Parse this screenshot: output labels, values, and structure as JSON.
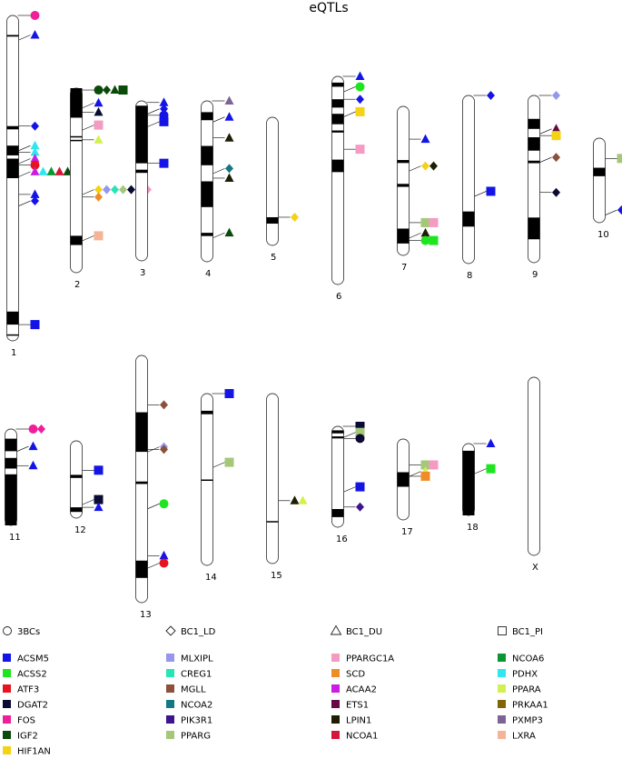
{
  "title": "eQTLs",
  "colors": {
    "ACSM5": "#1414e6",
    "ACSS2": "#1ee61e",
    "ATF3": "#e6141e",
    "DGAT2": "#0a0a32",
    "FOS": "#f01e9b",
    "IGF2": "#0a4b0a",
    "HIF1AN": "#f5d214",
    "MLXIPL": "#9696f0",
    "CREG1": "#28e6b4",
    "MGLL": "#8c503c",
    "NCOA2": "#147882",
    "PIK3R1": "#3c148c",
    "PPARG": "#a5c878",
    "PPARGC1A": "#f59bc3",
    "SCD": "#f08c28",
    "ACAA2": "#c81ee6",
    "ETS1": "#640a46",
    "LPIN1": "#1e1e05",
    "NCOA1": "#d7143c",
    "NCOA6": "#0a9632",
    "PDHX": "#32e6f0",
    "PPARA": "#d2f050",
    "PRKAA1": "#826405",
    "PXMP3": "#7d6496",
    "LXRA": "#f5b496"
  },
  "shape_legend": [
    {
      "shape": "circle",
      "label": "3BCs"
    },
    {
      "shape": "diamond",
      "label": "BC1_LD"
    },
    {
      "shape": "triangle",
      "label": "BC1_DU"
    },
    {
      "shape": "square",
      "label": "BC1_PI"
    }
  ],
  "gene_legend": [
    [
      "ACSM5",
      "ACSS2",
      "ATF3",
      "DGAT2",
      "FOS",
      "IGF2",
      "HIF1AN"
    ],
    [
      "MLXIPL",
      "CREG1",
      "MGLL",
      "NCOA2",
      "PIK3R1",
      "PPARG"
    ],
    [
      "PPARGC1A",
      "SCD",
      "ACAA2",
      "ETS1",
      "LPIN1",
      "NCOA1"
    ],
    [
      "NCOA6",
      "PDHX",
      "PPARA",
      "PRKAA1",
      "PXMP3",
      "LXRA"
    ]
  ],
  "chromosomes": [
    {
      "label": "1",
      "bands": [
        [
          0.06,
          0.005
        ],
        [
          0.34,
          0.01
        ],
        [
          0.4,
          0.03
        ],
        [
          0.44,
          0.06
        ],
        [
          0.91,
          0.04
        ],
        [
          0.98,
          0.004
        ]
      ],
      "markers": [
        {
          "pos": 0.0,
          "items": [
            [
              "circle",
              "FOS"
            ]
          ]
        },
        {
          "pos": 0.06,
          "items": [
            [
              "triangle",
              "ACSM5"
            ]
          ]
        },
        {
          "pos": 0.34,
          "items": [
            [
              "diamond",
              "ACSM5"
            ]
          ]
        },
        {
          "pos": 0.4,
          "items": [
            [
              "triangle",
              "PDHX"
            ]
          ]
        },
        {
          "pos": 0.42,
          "items": [
            [
              "triangle",
              "PDHX"
            ]
          ]
        },
        {
          "pos": 0.44,
          "items": [
            [
              "triangle",
              "ACAA2"
            ]
          ]
        },
        {
          "pos": 0.46,
          "items": [
            [
              "circle",
              "ATF3"
            ]
          ]
        },
        {
          "pos": 0.48,
          "items": [
            [
              "triangle",
              "ACAA2"
            ],
            [
              "triangle",
              "PDHX"
            ],
            [
              "triangle",
              "NCOA6"
            ],
            [
              "triangle",
              "NCOA1"
            ],
            [
              "triangle",
              "IGF2"
            ],
            [
              "triangle",
              "PRKAA1"
            ]
          ]
        },
        {
          "pos": 0.55,
          "items": [
            [
              "triangle",
              "ACSM5"
            ]
          ]
        },
        {
          "pos": 0.57,
          "items": [
            [
              "diamond",
              "ACSM5"
            ]
          ]
        },
        {
          "pos": 0.95,
          "items": [
            [
              "square",
              "ACSM5"
            ]
          ]
        }
      ]
    },
    {
      "label": "2",
      "bands": [
        [
          0.0,
          0.16
        ],
        [
          0.26,
          0.005
        ],
        [
          0.28,
          0.005
        ],
        [
          0.8,
          0.05
        ]
      ],
      "markers": [
        {
          "pos": 0.01,
          "items": [
            [
              "circle",
              "IGF2"
            ],
            [
              "diamond",
              "IGF2"
            ],
            [
              "triangle",
              "IGF2"
            ],
            [
              "square",
              "IGF2"
            ]
          ]
        },
        {
          "pos": 0.08,
          "items": [
            [
              "triangle",
              "ACSM5"
            ]
          ]
        },
        {
          "pos": 0.13,
          "items": [
            [
              "triangle",
              "DGAT2"
            ]
          ]
        },
        {
          "pos": 0.2,
          "items": [
            [
              "square",
              "PPARGC1A"
            ]
          ]
        },
        {
          "pos": 0.28,
          "items": [
            [
              "triangle",
              "PPARA"
            ]
          ]
        },
        {
          "pos": 0.55,
          "items": [
            [
              "diamond",
              "HIF1AN"
            ],
            [
              "diamond",
              "MLXIPL"
            ],
            [
              "diamond",
              "CREG1"
            ],
            [
              "diamond",
              "PPARG"
            ],
            [
              "diamond",
              "DGAT2"
            ],
            [
              "diamond",
              "MGLL"
            ],
            [
              "diamond",
              "PPARGC1A"
            ]
          ]
        },
        {
          "pos": 0.59,
          "items": [
            [
              "diamond",
              "SCD"
            ]
          ]
        },
        {
          "pos": 0.8,
          "items": [
            [
              "square",
              "LXRA"
            ]
          ]
        }
      ]
    },
    {
      "label": "3",
      "bands": [
        [
          0.03,
          0.36
        ],
        [
          0.43,
          0.02
        ]
      ],
      "markers": [
        {
          "pos": 0.01,
          "items": [
            [
              "triangle",
              "ACSM5"
            ]
          ]
        },
        {
          "pos": 0.05,
          "items": [
            [
              "diamond",
              "ACSM5"
            ]
          ]
        },
        {
          "pos": 0.09,
          "items": [
            [
              "circle",
              "ACSM5"
            ]
          ]
        },
        {
          "pos": 0.13,
          "items": [
            [
              "square",
              "ACSM5"
            ]
          ]
        },
        {
          "pos": 0.39,
          "items": [
            [
              "square",
              "ACSM5"
            ]
          ]
        }
      ]
    },
    {
      "label": "4",
      "bands": [
        [
          0.07,
          0.05
        ],
        [
          0.28,
          0.12
        ],
        [
          0.5,
          0.16
        ],
        [
          0.82,
          0.02
        ]
      ],
      "markers": [
        {
          "pos": 0.0,
          "items": [
            [
              "triangle",
              "PXMP3"
            ]
          ]
        },
        {
          "pos": 0.1,
          "items": [
            [
              "triangle",
              "ACSM5"
            ]
          ]
        },
        {
          "pos": 0.23,
          "items": [
            [
              "triangle",
              "LPIN1"
            ]
          ]
        },
        {
          "pos": 0.42,
          "items": [
            [
              "diamond",
              "NCOA2"
            ]
          ]
        },
        {
          "pos": 0.48,
          "items": [
            [
              "triangle",
              "LPIN1"
            ]
          ]
        },
        {
          "pos": 0.82,
          "items": [
            [
              "triangle",
              "IGF2"
            ]
          ]
        }
      ]
    },
    {
      "label": "5",
      "bands": [
        [
          0.78,
          0.05
        ]
      ],
      "markers": [
        {
          "pos": 0.78,
          "items": [
            [
              "diamond",
              "HIF1AN"
            ]
          ]
        }
      ]
    },
    {
      "label": "6",
      "bands": [
        [
          0.03,
          0.02
        ],
        [
          0.11,
          0.04
        ],
        [
          0.18,
          0.05
        ],
        [
          0.26,
          0.01
        ],
        [
          0.4,
          0.06
        ]
      ],
      "markers": [
        {
          "pos": 0.0,
          "items": [
            [
              "triangle",
              "ACSM5"
            ]
          ]
        },
        {
          "pos": 0.05,
          "items": [
            [
              "circle",
              "ACSS2"
            ]
          ]
        },
        {
          "pos": 0.11,
          "items": [
            [
              "diamond",
              "ACSM5"
            ]
          ]
        },
        {
          "pos": 0.17,
          "items": [
            [
              "square",
              "HIF1AN"
            ]
          ]
        },
        {
          "pos": 0.35,
          "items": [
            [
              "square",
              "PPARGC1A"
            ]
          ]
        }
      ]
    },
    {
      "label": "7",
      "bands": [
        [
          0.36,
          0.02
        ],
        [
          0.52,
          0.02
        ],
        [
          0.82,
          0.1
        ]
      ],
      "markers": [
        {
          "pos": 0.22,
          "items": [
            [
              "triangle",
              "ACSM5"
            ]
          ]
        },
        {
          "pos": 0.4,
          "items": [
            [
              "diamond",
              "HIF1AN"
            ],
            [
              "diamond",
              "LPIN1"
            ]
          ]
        },
        {
          "pos": 0.78,
          "items": [
            [
              "square",
              "PPARG"
            ],
            [
              "square",
              "PPARGC1A"
            ]
          ]
        },
        {
          "pos": 0.85,
          "items": [
            [
              "triangle",
              "LPIN1"
            ]
          ]
        },
        {
          "pos": 0.9,
          "items": [
            [
              "circle",
              "ACSS2"
            ],
            [
              "square",
              "ACSS2"
            ]
          ]
        }
      ]
    },
    {
      "label": "8",
      "bands": [
        [
          0.69,
          0.09
        ]
      ],
      "markers": [
        {
          "pos": 0.0,
          "items": [
            [
              "diamond",
              "ACSM5"
            ]
          ]
        },
        {
          "pos": 0.57,
          "items": [
            [
              "square",
              "ACSM5"
            ]
          ]
        }
      ]
    },
    {
      "label": "9",
      "bands": [
        [
          0.14,
          0.06
        ],
        [
          0.25,
          0.08
        ],
        [
          0.39,
          0.015
        ],
        [
          0.73,
          0.13
        ]
      ],
      "markers": [
        {
          "pos": 0.0,
          "items": [
            [
              "diamond",
              "MLXIPL"
            ]
          ]
        },
        {
          "pos": 0.2,
          "items": [
            [
              "triangle",
              "ETS1"
            ]
          ]
        },
        {
          "pos": 0.24,
          "items": [
            [
              "square",
              "HIF1AN"
            ]
          ]
        },
        {
          "pos": 0.37,
          "items": [
            [
              "diamond",
              "MGLL"
            ]
          ]
        },
        {
          "pos": 0.58,
          "items": [
            [
              "diamond",
              "DGAT2"
            ]
          ]
        }
      ]
    },
    {
      "label": "10",
      "bands": [
        [
          0.35,
          0.1
        ]
      ],
      "markers": [
        {
          "pos": 0.24,
          "items": [
            [
              "square",
              "PPARG"
            ]
          ]
        },
        {
          "pos": 0.85,
          "items": [
            [
              "diamond",
              "ACSM5"
            ]
          ]
        }
      ]
    },
    {
      "label": "11",
      "bands": [
        [
          0.1,
          0.13
        ],
        [
          0.3,
          0.11
        ],
        [
          0.47,
          0.53
        ]
      ],
      "markers": [
        {
          "pos": 0.0,
          "items": [
            [
              "circle",
              "FOS"
            ],
            [
              "diamond",
              "FOS"
            ]
          ]
        },
        {
          "pos": 0.18,
          "items": [
            [
              "triangle",
              "ACSM5"
            ]
          ]
        },
        {
          "pos": 0.38,
          "items": [
            [
              "triangle",
              "ACSM5"
            ]
          ]
        }
      ]
    },
    {
      "label": "12",
      "bands": [
        [
          0.44,
          0.04
        ],
        [
          0.86,
          0.06
        ]
      ],
      "markers": [
        {
          "pos": 0.38,
          "items": [
            [
              "square",
              "ACSM5"
            ]
          ]
        },
        {
          "pos": 0.76,
          "items": [
            [
              "square",
              "DGAT2"
            ]
          ]
        },
        {
          "pos": 0.86,
          "items": [
            [
              "triangle",
              "ACSM5"
            ]
          ]
        }
      ]
    },
    {
      "label": "13",
      "bands": [
        [
          0.23,
          0.16
        ],
        [
          0.51,
          0.01
        ],
        [
          0.83,
          0.07
        ]
      ],
      "markers": [
        {
          "pos": 0.2,
          "items": [
            [
              "diamond",
              "MGLL"
            ]
          ]
        },
        {
          "pos": 0.37,
          "items": [
            [
              "diamond",
              "MLXIPL"
            ]
          ]
        },
        {
          "pos": 0.38,
          "items": [
            [
              "diamond",
              "MGLL"
            ]
          ]
        },
        {
          "pos": 0.6,
          "items": [
            [
              "circle",
              "ACSS2"
            ]
          ]
        },
        {
          "pos": 0.81,
          "items": [
            [
              "triangle",
              "ACSM5"
            ]
          ]
        },
        {
          "pos": 0.84,
          "items": [
            [
              "circle",
              "ATF3"
            ]
          ]
        }
      ]
    },
    {
      "label": "14",
      "bands": [
        [
          0.1,
          0.02
        ],
        [
          0.5,
          0.003
        ]
      ],
      "markers": [
        {
          "pos": 0.0,
          "items": [
            [
              "square",
              "ACSM5"
            ]
          ]
        },
        {
          "pos": 0.4,
          "items": [
            [
              "square",
              "PPARG"
            ]
          ]
        }
      ]
    },
    {
      "label": "15",
      "bands": [
        [
          0.75,
          0.003
        ]
      ],
      "markers": [
        {
          "pos": 0.63,
          "items": [
            [
              "triangle",
              "LPIN1"
            ],
            [
              "triangle",
              "PPARA"
            ]
          ]
        }
      ]
    },
    {
      "label": "16",
      "bands": [
        [
          0.04,
          0.03
        ],
        [
          0.1,
          0.02
        ],
        [
          0.82,
          0.08
        ]
      ],
      "markers": [
        {
          "pos": 0.0,
          "items": [
            [
              "square",
              "DGAT2"
            ]
          ]
        },
        {
          "pos": 0.06,
          "items": [
            [
              "square",
              "PPARG"
            ]
          ]
        },
        {
          "pos": 0.12,
          "items": [
            [
              "circle",
              "DGAT2"
            ]
          ]
        },
        {
          "pos": 0.6,
          "items": [
            [
              "square",
              "ACSM5"
            ]
          ]
        },
        {
          "pos": 0.8,
          "items": [
            [
              "diamond",
              "PIK3R1"
            ]
          ]
        }
      ]
    },
    {
      "label": "17",
      "bands": [
        [
          0.41,
          0.18
        ]
      ],
      "markers": [
        {
          "pos": 0.32,
          "items": [
            [
              "square",
              "PPARG"
            ],
            [
              "square",
              "PPARGC1A"
            ]
          ]
        },
        {
          "pos": 0.4,
          "items": [
            [
              "triangle",
              "PPARA"
            ]
          ]
        },
        {
          "pos": 0.46,
          "items": [
            [
              "square",
              "SCD"
            ]
          ]
        }
      ]
    },
    {
      "label": "18",
      "bands": [
        [
          0.1,
          0.9
        ]
      ],
      "markers": [
        {
          "pos": 0.0,
          "items": [
            [
              "triangle",
              "ACSM5"
            ]
          ]
        },
        {
          "pos": 0.35,
          "items": [
            [
              "square",
              "ACSS2"
            ]
          ]
        }
      ]
    },
    {
      "label": "X",
      "bands": [],
      "markers": []
    }
  ]
}
